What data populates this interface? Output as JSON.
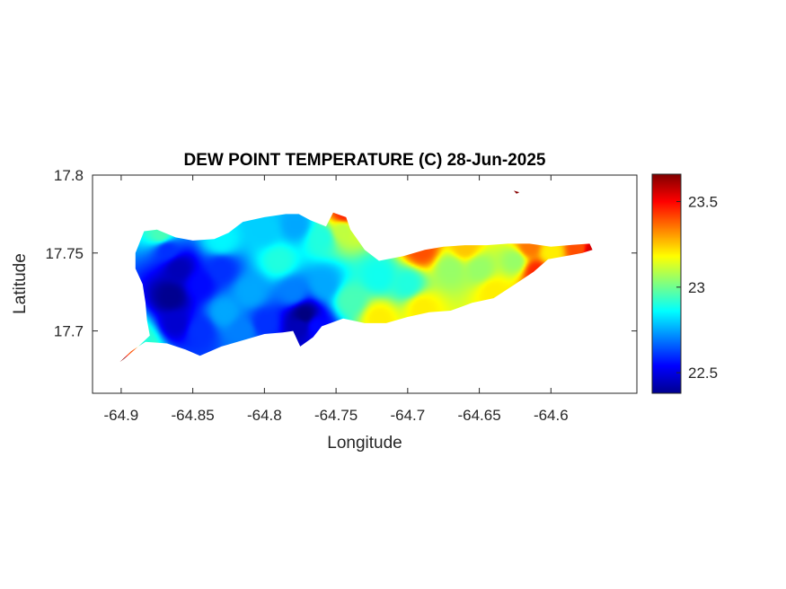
{
  "figure": {
    "title": "DEW POINT TEMPERATURE (C) 28-Jun-2025"
  },
  "chart_data": {
    "type": "heatmap",
    "title": "DEW POINT TEMPERATURE (C) 28-Jun-2025",
    "xlabel": "Longitude",
    "ylabel": "Latitude",
    "xlim": [
      -64.92,
      -64.54
    ],
    "ylim": [
      17.66,
      17.8
    ],
    "x_ticks": [
      -64.9,
      -64.85,
      -64.8,
      -64.75,
      -64.7,
      -64.65,
      -64.6
    ],
    "x_tick_labels": [
      "-64.9",
      "-64.85",
      "-64.8",
      "-64.75",
      "-64.7",
      "-64.65",
      "-64.6"
    ],
    "y_ticks": [
      17.7,
      17.75,
      17.8
    ],
    "y_tick_labels": [
      "17.7",
      "17.75",
      "17.8"
    ],
    "colorbar": {
      "colormap": "jet",
      "clim": [
        22.38,
        23.66
      ],
      "ticks": [
        22.5,
        23,
        23.5
      ],
      "tick_labels": [
        "22.5",
        "23",
        "23.5"
      ]
    },
    "outline": [
      [
        -64.901,
        17.68
      ],
      [
        -64.893,
        17.687
      ],
      [
        -64.883,
        17.693
      ],
      [
        -64.868,
        17.692
      ],
      [
        -64.855,
        17.688
      ],
      [
        -64.845,
        17.684
      ],
      [
        -64.83,
        17.69
      ],
      [
        -64.815,
        17.694
      ],
      [
        -64.8,
        17.698
      ],
      [
        -64.787,
        17.699
      ],
      [
        -64.78,
        17.7
      ],
      [
        -64.775,
        17.69
      ],
      [
        -64.766,
        17.696
      ],
      [
        -64.76,
        17.703
      ],
      [
        -64.745,
        17.708
      ],
      [
        -64.73,
        17.705
      ],
      [
        -64.715,
        17.705
      ],
      [
        -64.7,
        17.709
      ],
      [
        -64.685,
        17.712
      ],
      [
        -64.67,
        17.713
      ],
      [
        -64.655,
        17.718
      ],
      [
        -64.64,
        17.721
      ],
      [
        -64.625,
        17.73
      ],
      [
        -64.612,
        17.738
      ],
      [
        -64.602,
        17.746
      ],
      [
        -64.59,
        17.748
      ],
      [
        -64.578,
        17.75
      ],
      [
        -64.571,
        17.752
      ],
      [
        -64.573,
        17.756
      ],
      [
        -64.588,
        17.755
      ],
      [
        -64.6,
        17.754
      ],
      [
        -64.615,
        17.756
      ],
      [
        -64.63,
        17.756
      ],
      [
        -64.645,
        17.755
      ],
      [
        -64.66,
        17.755
      ],
      [
        -64.675,
        17.754
      ],
      [
        -64.688,
        17.752
      ],
      [
        -64.703,
        17.748
      ],
      [
        -64.72,
        17.745
      ],
      [
        -64.73,
        17.752
      ],
      [
        -64.74,
        17.765
      ],
      [
        -64.743,
        17.773
      ],
      [
        -64.752,
        17.776
      ],
      [
        -64.757,
        17.767
      ],
      [
        -64.768,
        17.771
      ],
      [
        -64.776,
        17.775
      ],
      [
        -64.785,
        17.775
      ],
      [
        -64.8,
        17.773
      ],
      [
        -64.815,
        17.77
      ],
      [
        -64.825,
        17.763
      ],
      [
        -64.835,
        17.759
      ],
      [
        -64.85,
        17.758
      ],
      [
        -64.862,
        17.76
      ],
      [
        -64.875,
        17.765
      ],
      [
        -64.884,
        17.764
      ],
      [
        -64.887,
        17.757
      ],
      [
        -64.89,
        17.75
      ],
      [
        -64.89,
        17.74
      ],
      [
        -64.885,
        17.73
      ],
      [
        -64.883,
        17.718
      ],
      [
        -64.882,
        17.707
      ],
      [
        -64.88,
        17.697
      ],
      [
        -64.888,
        17.69
      ],
      [
        -64.898,
        17.682
      ]
    ],
    "outline_islet": [
      [
        -64.622,
        17.789
      ],
      [
        -64.626,
        17.79
      ],
      [
        -64.624,
        17.788
      ]
    ],
    "samples": [
      [
        -64.9,
        17.68,
        23.65
      ],
      [
        -64.893,
        17.688,
        23.4
      ],
      [
        -64.885,
        17.693,
        22.9
      ],
      [
        -64.865,
        17.722,
        22.4
      ],
      [
        -64.86,
        17.74,
        22.45
      ],
      [
        -64.868,
        17.752,
        22.6
      ],
      [
        -64.845,
        17.73,
        22.55
      ],
      [
        -64.83,
        17.74,
        22.6
      ],
      [
        -64.862,
        17.705,
        22.48
      ],
      [
        -64.845,
        17.7,
        22.6
      ],
      [
        -64.828,
        17.712,
        22.75
      ],
      [
        -64.815,
        17.7,
        22.7
      ],
      [
        -64.81,
        17.725,
        22.75
      ],
      [
        -64.8,
        17.705,
        22.6
      ],
      [
        -64.79,
        17.745,
        22.9
      ],
      [
        -64.78,
        17.725,
        22.7
      ],
      [
        -64.772,
        17.71,
        22.38
      ],
      [
        -64.775,
        17.703,
        22.45
      ],
      [
        -64.764,
        17.703,
        22.55
      ],
      [
        -64.758,
        17.73,
        22.75
      ],
      [
        -64.76,
        17.76,
        22.9
      ],
      [
        -64.778,
        17.768,
        22.75
      ],
      [
        -64.8,
        17.765,
        22.8
      ],
      [
        -64.83,
        17.758,
        22.85
      ],
      [
        -64.872,
        17.762,
        22.95
      ],
      [
        -64.745,
        17.765,
        23.1
      ],
      [
        -64.744,
        17.775,
        23.45
      ],
      [
        -64.74,
        17.72,
        22.95
      ],
      [
        -64.72,
        17.735,
        22.88
      ],
      [
        -64.7,
        17.73,
        22.9
      ],
      [
        -64.72,
        17.708,
        23.2
      ],
      [
        -64.69,
        17.715,
        23.2
      ],
      [
        -64.67,
        17.74,
        23.05
      ],
      [
        -64.65,
        17.74,
        23.05
      ],
      [
        -64.64,
        17.725,
        23.2
      ],
      [
        -64.625,
        17.745,
        23.05
      ],
      [
        -64.615,
        17.754,
        23.35
      ],
      [
        -64.6,
        17.75,
        23.2
      ],
      [
        -64.61,
        17.738,
        23.45
      ],
      [
        -64.58,
        17.753,
        23.4
      ],
      [
        -64.572,
        17.752,
        23.55
      ],
      [
        -64.69,
        17.752,
        23.4
      ],
      [
        -64.66,
        17.754,
        23.25
      ],
      [
        -64.624,
        17.789,
        23.65
      ]
    ]
  }
}
